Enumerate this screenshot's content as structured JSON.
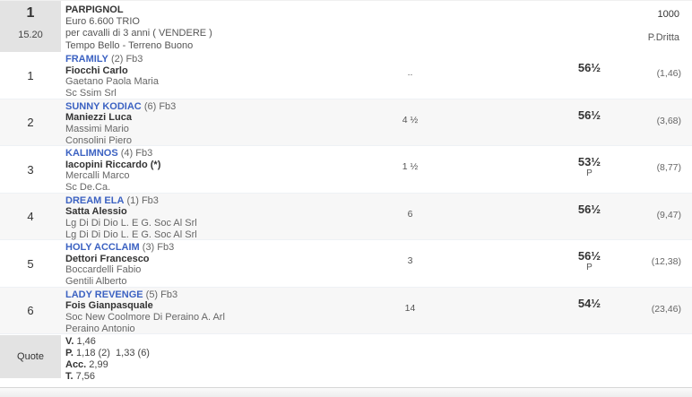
{
  "header": {
    "race_number": "1",
    "time": "15.20",
    "title": "PARPIGNOL",
    "prize": "Euro 6.600 TRIO",
    "conditions": "per cavalli di 3 anni ( VENDERE )",
    "going": "Tempo Bello - Terreno Buono",
    "distance": "1000",
    "track": "P.Dritta"
  },
  "runners": [
    {
      "num": "1",
      "name": "FRAMILY",
      "info": "(2) Fb3",
      "jockey": "Fiocchi Carlo",
      "trainer": "Gaetano Paola Maria",
      "owner": "Sc Ssim Srl",
      "gap": "..",
      "weight": "56½",
      "weight_note": "",
      "odds": "(1,46)"
    },
    {
      "num": "2",
      "name": "SUNNY KODIAC",
      "info": "(6) Fb3",
      "jockey": "Maniezzi Luca",
      "trainer": "Massimi Mario",
      "owner": "Consolini Piero",
      "gap": "4 ½",
      "weight": "56½",
      "weight_note": "",
      "odds": "(3,68)"
    },
    {
      "num": "3",
      "name": "KALIMNOS",
      "info": "(4) Fb3",
      "jockey": "Iacopini Riccardo (*)",
      "trainer": "Mercalli Marco",
      "owner": "Sc De.Ca.",
      "gap": "1 ½",
      "weight": "53½",
      "weight_note": "P",
      "odds": "(8,77)"
    },
    {
      "num": "4",
      "name": "DREAM ELA",
      "info": "(1) Fb3",
      "jockey": "Satta Alessio",
      "trainer": "Lg Di Di Dio L. E G. Soc Al Srl",
      "owner": "Lg Di Di Dio L. E G. Soc Al Srl",
      "gap": "6",
      "weight": "56½",
      "weight_note": "",
      "odds": "(9,47)"
    },
    {
      "num": "5",
      "name": "HOLY ACCLAIM",
      "info": "(3) Fb3",
      "jockey": "Dettori Francesco",
      "trainer": "Boccardelli Fabio",
      "owner": "Gentili Alberto",
      "gap": "3",
      "weight": "56½",
      "weight_note": "P",
      "odds": "(12,38)"
    },
    {
      "num": "6",
      "name": "LADY REVENGE",
      "info": "(5) Fb3",
      "jockey": "Fois Gianpasquale",
      "trainer": "Soc New Coolmore Di Peraino A. Arl",
      "owner": "Peraino Antonio",
      "gap": "14",
      "weight": "54½",
      "weight_note": "",
      "odds": "(23,46)"
    }
  ],
  "quote": {
    "label": "Quote",
    "lines": [
      {
        "label": "V.",
        "value": " 1,46"
      },
      {
        "label": "P.",
        "value": " 1,18 (2)  1,33 (6)"
      },
      {
        "label": "Acc.",
        "value": " 2,99"
      },
      {
        "label": "T.",
        "value": " 7,56"
      }
    ]
  },
  "colors": {
    "link_blue": "#3c62c2",
    "cell_gray": "#e3e3e3",
    "stripe": "#f7f7f7"
  }
}
